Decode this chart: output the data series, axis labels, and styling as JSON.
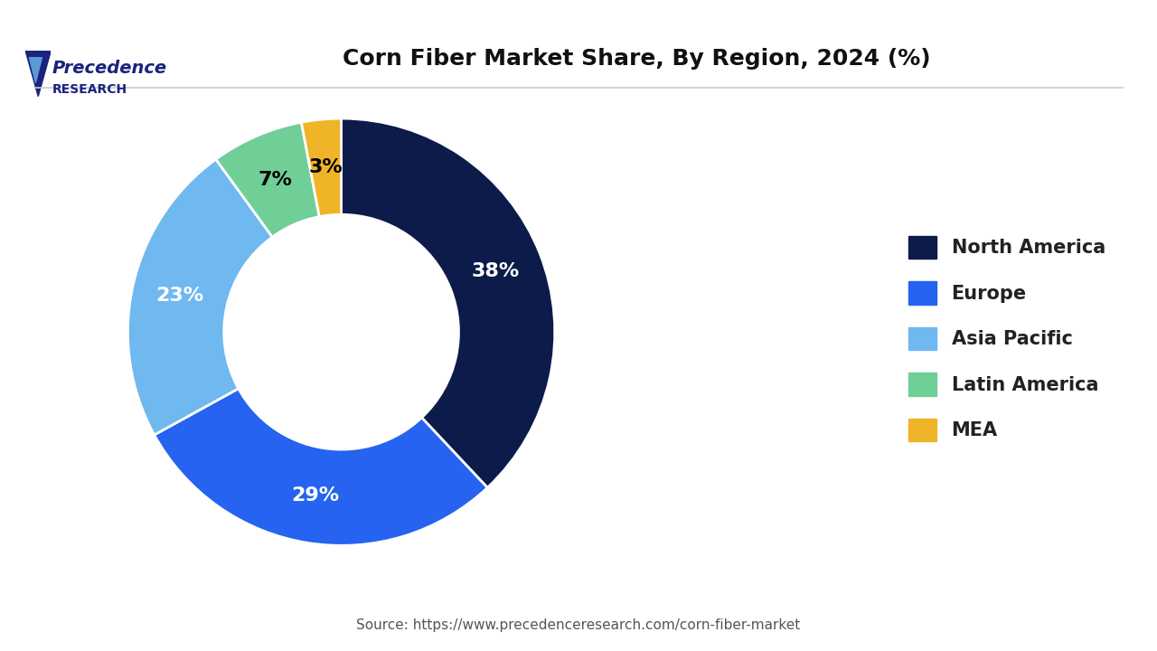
{
  "title": "Corn Fiber Market Share, By Region, 2024 (%)",
  "source": "Source: https://www.precedenceresearch.com/corn-fiber-market",
  "labels": [
    "North America",
    "Europe",
    "Asia Pacific",
    "Latin America",
    "MEA"
  ],
  "values": [
    38,
    29,
    23,
    7,
    3
  ],
  "colors": [
    "#0d1b4b",
    "#2563f0",
    "#70b8f0",
    "#6fcf97",
    "#f0b429"
  ],
  "text_colors": [
    "white",
    "white",
    "white",
    "black",
    "black"
  ],
  "pct_labels": [
    "38%",
    "29%",
    "23%",
    "7%",
    "3%"
  ],
  "background_color": "#ffffff",
  "wedge_edge_color": "#ffffff",
  "donut_hole": 0.55,
  "start_angle": 90,
  "logo_text_line1": "Precedence",
  "logo_text_line2": "RESEARCH"
}
